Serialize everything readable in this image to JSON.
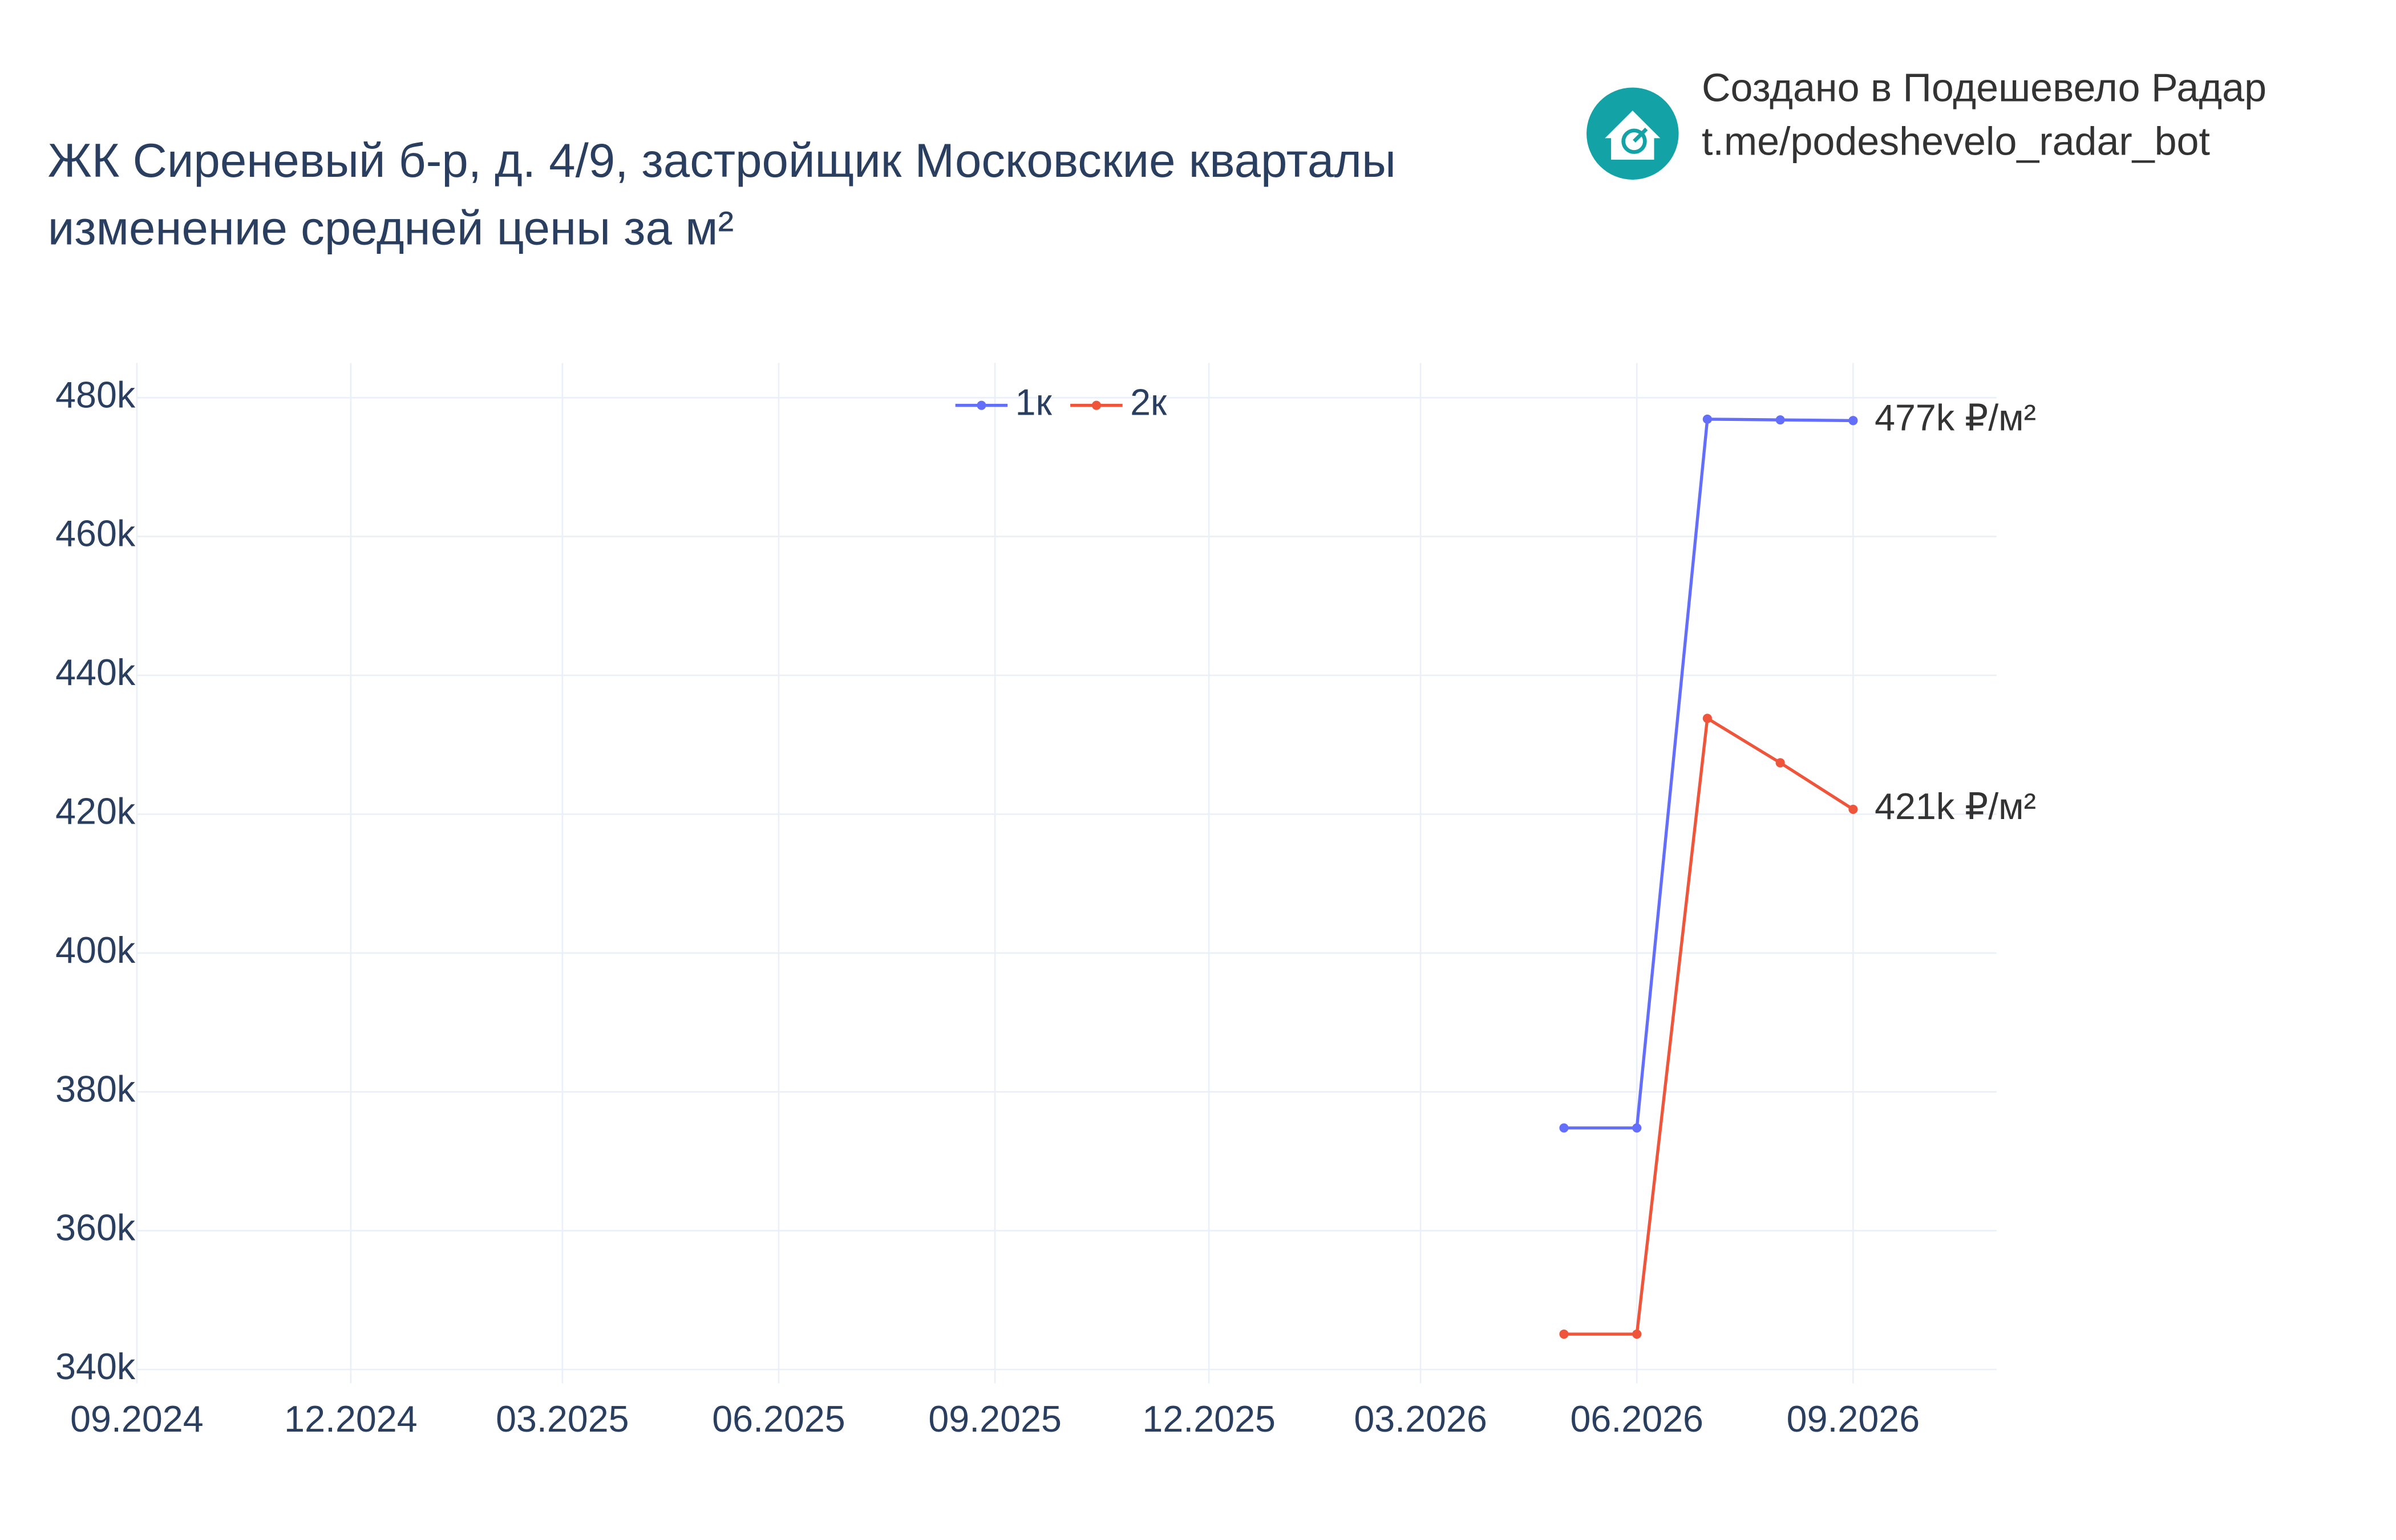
{
  "header": {
    "line1": "Создано в Подешевело Радар",
    "line2": "t.me/podeshevelo_radar_bot"
  },
  "chart_data": {
    "type": "line",
    "title": "ЖК Сиреневый б-р, д. 4/9, застройщик Московские кварталы",
    "subtitle": "изменение средней цены за м²",
    "x": [
      "05.2026",
      "06.2026",
      "07.2026",
      "08.2026",
      "09.2026"
    ],
    "xlim": [
      "09.2024",
      "11.2026"
    ],
    "xticks": [
      "09.2024",
      "12.2024",
      "03.2025",
      "06.2025",
      "09.2025",
      "12.2025",
      "03.2026",
      "06.2026",
      "09.2026"
    ],
    "ylim": [
      338000,
      485000
    ],
    "yticks": [
      {
        "value": 340000,
        "label": "340k"
      },
      {
        "value": 360000,
        "label": "360k"
      },
      {
        "value": 380000,
        "label": "380k"
      },
      {
        "value": 400000,
        "label": "400k"
      },
      {
        "value": 420000,
        "label": "420k"
      },
      {
        "value": 440000,
        "label": "440k"
      },
      {
        "value": 460000,
        "label": "460k"
      },
      {
        "value": 480000,
        "label": "480k"
      }
    ],
    "grid": true,
    "legend": "top",
    "series": [
      {
        "name": "1к",
        "color": "#636efa",
        "values": [
          374800,
          374800,
          476900,
          476800,
          476700
        ],
        "value_labels": [
          null,
          null,
          null,
          null,
          "477k ₽/м²"
        ]
      },
      {
        "name": "2к",
        "color": "#ef553b",
        "values": [
          345100,
          345100,
          433800,
          427400,
          420700
        ],
        "value_labels": [
          null,
          null,
          null,
          null,
          "421k ₽/м²"
        ]
      }
    ]
  }
}
